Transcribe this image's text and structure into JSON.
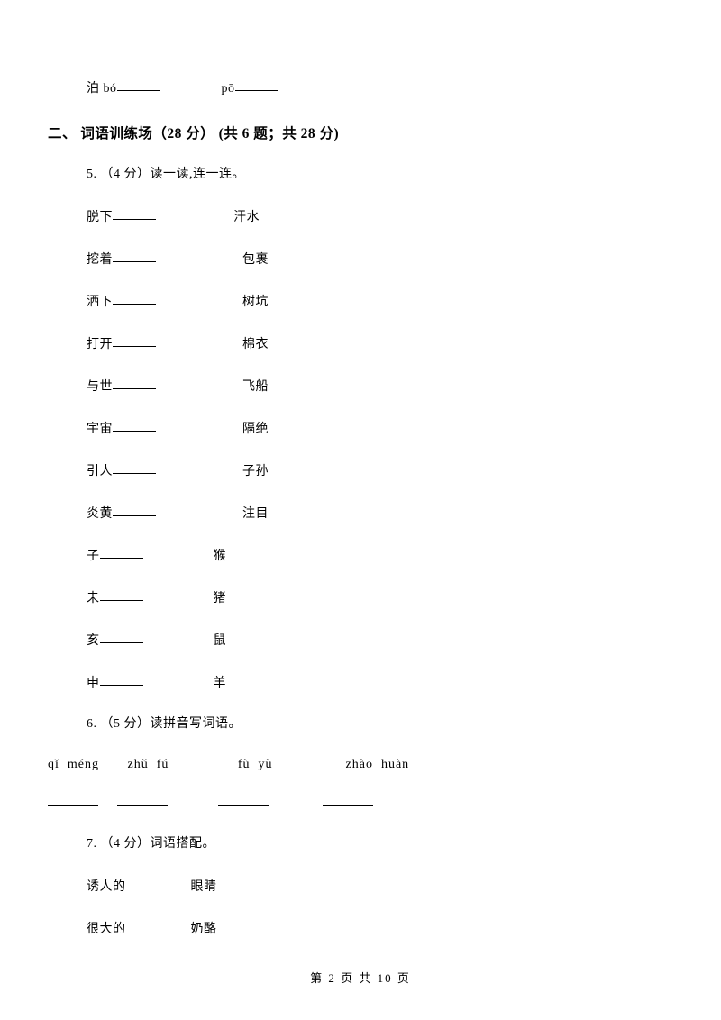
{
  "q4": {
    "prefix": "泊 bó",
    "prefix2": "pō"
  },
  "section2": {
    "title": "二、 词语训练场（28 分） (共 6 题；共 28 分)"
  },
  "q5": {
    "header": "5.  （4 分）读一读,连一连。",
    "pairs": [
      {
        "left": "脱下",
        "right": "汗水"
      },
      {
        "left": "挖着",
        "right": "包裹"
      },
      {
        "left": "洒下",
        "right": "树坑"
      },
      {
        "left": "打开",
        "right": "棉衣"
      },
      {
        "left": "与世",
        "right": "飞船"
      },
      {
        "left": "宇宙",
        "right": "隔绝"
      },
      {
        "left": "引人",
        "right": "子孙"
      },
      {
        "left": "炎黄",
        "right": "注目"
      },
      {
        "left": "子",
        "right": "猴"
      },
      {
        "left": "未",
        "right": "猪"
      },
      {
        "left": "亥",
        "right": "鼠"
      },
      {
        "left": "申",
        "right": "羊"
      }
    ]
  },
  "q6": {
    "header": "6.  （5 分）读拼音写词语。",
    "pinyin": "qǐ  méng       zhǔ  fú                 fù  yù                  zhào  huàn"
  },
  "q7": {
    "header": "7.  （4 分）词语搭配。",
    "pairs": [
      {
        "left": "诱人的",
        "right": "眼睛"
      },
      {
        "left": "很大的",
        "right": "奶酪"
      }
    ]
  },
  "footer": {
    "text": "第 2 页 共 10 页"
  }
}
